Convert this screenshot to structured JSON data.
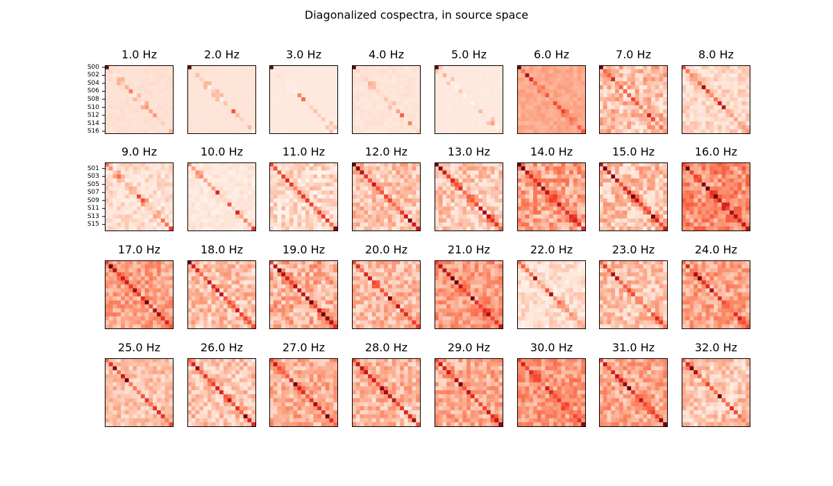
{
  "title": "Diagonalized cospectra, in source space",
  "chart_data": {
    "type": "heatmap",
    "colormap": "Reds",
    "n_sources": 17,
    "grid": false,
    "layout": {
      "rows": 4,
      "cols": 8
    },
    "frequencies": [
      1,
      2,
      3,
      4,
      5,
      6,
      7,
      8,
      9,
      10,
      11,
      12,
      13,
      14,
      15,
      16,
      17,
      18,
      19,
      20,
      21,
      22,
      23,
      24,
      25,
      26,
      27,
      28,
      29,
      30,
      31,
      32
    ],
    "panel_titles": [
      "1.0 Hz",
      "2.0 Hz",
      "3.0 Hz",
      "4.0 Hz",
      "5.0 Hz",
      "6.0 Hz",
      "7.0 Hz",
      "8.0 Hz",
      "9.0 Hz",
      "10.0 Hz",
      "11.0 Hz",
      "12.0 Hz",
      "13.0 Hz",
      "14.0 Hz",
      "15.0 Hz",
      "16.0 Hz",
      "17.0 Hz",
      "18.0 Hz",
      "19.0 Hz",
      "20.0 Hz",
      "21.0 Hz",
      "22.0 Hz",
      "23.0 Hz",
      "24.0 Hz",
      "25.0 Hz",
      "26.0 Hz",
      "27.0 Hz",
      "28.0 Hz",
      "29.0 Hz",
      "30.0 Hz",
      "31.0 Hz",
      "32.0 Hz"
    ],
    "yticklabels_row1": [
      "S00",
      "S02",
      "S04",
      "S06",
      "S08",
      "S10",
      "S12",
      "S14",
      "S16"
    ],
    "yticklabels_row2": [
      "S01",
      "S03",
      "S05",
      "S07",
      "S09",
      "S11",
      "S13",
      "S15"
    ],
    "background_level": [
      0.12,
      0.1,
      0.07,
      0.1,
      0.07,
      0.3,
      0.22,
      0.15,
      0.12,
      0.08,
      0.14,
      0.22,
      0.2,
      0.32,
      0.22,
      0.38,
      0.32,
      0.22,
      0.28,
      0.25,
      0.35,
      0.12,
      0.22,
      0.32,
      0.22,
      0.22,
      0.28,
      0.25,
      0.3,
      0.35,
      0.3,
      0.2
    ],
    "offdiag_noise": [
      0.02,
      0.01,
      0.01,
      0.03,
      0.01,
      0.05,
      0.18,
      0.1,
      0.1,
      0.06,
      0.14,
      0.15,
      0.15,
      0.18,
      0.18,
      0.18,
      0.15,
      0.15,
      0.18,
      0.15,
      0.15,
      0.1,
      0.15,
      0.15,
      0.12,
      0.15,
      0.15,
      0.15,
      0.15,
      0.15,
      0.15,
      0.15
    ],
    "diagonal_level": [
      0.18,
      0.12,
      0.08,
      0.18,
      0.1,
      0.45,
      0.5,
      0.45,
      0.35,
      0.3,
      0.55,
      0.6,
      0.6,
      0.7,
      0.7,
      0.7,
      0.7,
      0.65,
      0.7,
      0.6,
      0.7,
      0.45,
      0.55,
      0.6,
      0.55,
      0.6,
      0.65,
      0.65,
      0.65,
      0.6,
      0.65,
      0.55
    ],
    "corner_peak": [
      1.0,
      1.0,
      1.0,
      1.0,
      1.0,
      1.0,
      1.0,
      0.6,
      0.5,
      0.4,
      0.6,
      1.0,
      1.0,
      1.0,
      0.8,
      0.6,
      0.6,
      1.0,
      0.6,
      0.6,
      0.6,
      0.5,
      0.5,
      0.5,
      0.5,
      0.5,
      0.6,
      0.6,
      0.6,
      0.6,
      0.6,
      0.5
    ]
  }
}
